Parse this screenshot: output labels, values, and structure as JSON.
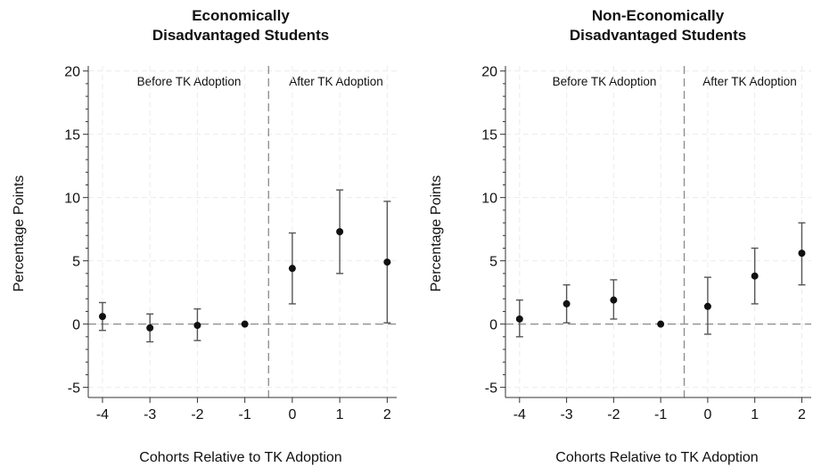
{
  "chart_data": [
    {
      "type": "scatter",
      "title_lines": [
        "Economically",
        "Disadvantaged Students"
      ],
      "xlabel": "Cohorts Relative to TK Adoption",
      "ylabel": "Percentage Points",
      "x": [
        -4,
        -3,
        -2,
        -1,
        0,
        1,
        2
      ],
      "y": [
        0.6,
        -0.3,
        -0.1,
        0.0,
        4.4,
        7.3,
        4.9
      ],
      "ci_low": [
        -0.5,
        -1.4,
        -1.3,
        0.0,
        1.6,
        4.0,
        0.1
      ],
      "ci_high": [
        1.7,
        0.8,
        1.2,
        0.0,
        7.2,
        10.6,
        9.7
      ],
      "xlim": [
        -4.3,
        2.2
      ],
      "ylim": [
        -5.8,
        20.4
      ],
      "yticks": [
        -5,
        0,
        5,
        10,
        15,
        20
      ],
      "xticks": [
        -4,
        -3,
        -2,
        -1,
        0,
        1,
        2
      ],
      "reference_x": -0.5,
      "reference_y": 0,
      "region_labels": [
        "Before TK Adoption",
        "After TK Adoption"
      ],
      "grid": true
    },
    {
      "type": "scatter",
      "title_lines": [
        "Non-Economically",
        "Disadvantaged Students"
      ],
      "xlabel": "Cohorts Relative to TK Adoption",
      "ylabel": "Percentage Points",
      "x": [
        -4,
        -3,
        -2,
        -1,
        0,
        1,
        2
      ],
      "y": [
        0.4,
        1.6,
        1.9,
        0.0,
        1.4,
        3.8,
        5.6
      ],
      "ci_low": [
        -1.0,
        0.1,
        0.4,
        0.0,
        -0.8,
        1.6,
        3.1
      ],
      "ci_high": [
        1.9,
        3.1,
        3.5,
        0.0,
        3.7,
        6.0,
        8.0
      ],
      "xlim": [
        -4.3,
        2.2
      ],
      "ylim": [
        -5.8,
        20.4
      ],
      "yticks": [
        -5,
        0,
        5,
        10,
        15,
        20
      ],
      "xticks": [
        -4,
        -3,
        -2,
        -1,
        0,
        1,
        2
      ],
      "reference_x": -0.5,
      "reference_y": 0,
      "region_labels": [
        "Before TK Adoption",
        "After TK Adoption"
      ],
      "grid": true
    }
  ],
  "colors": {
    "marker": "#111111",
    "errorbar": "#555555",
    "grid": "#ececec",
    "reference": "#8a8a8a",
    "axis": "#333333"
  }
}
